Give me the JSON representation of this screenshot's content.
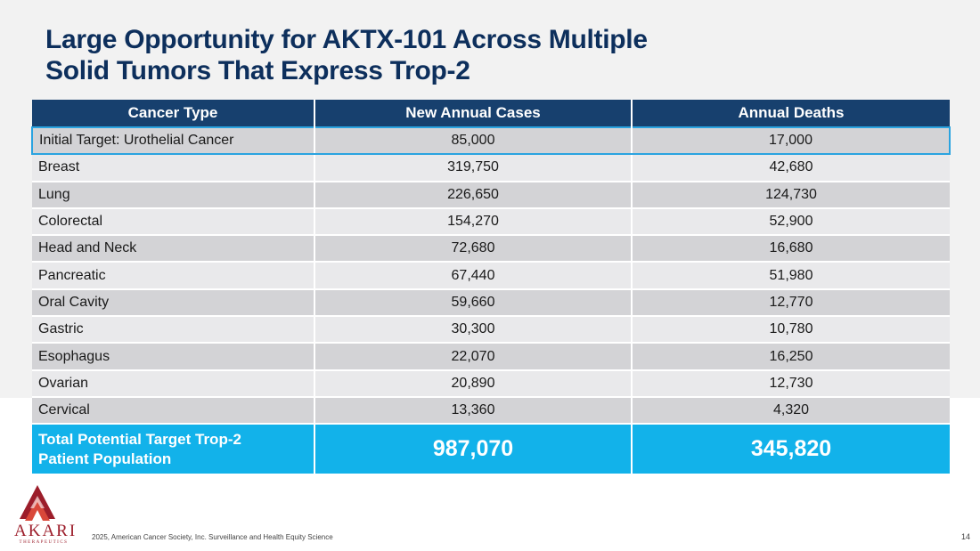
{
  "slide": {
    "title_line1": "Large Opportunity for AKTX-101 Across Multiple",
    "title_line2": "Solid Tumors That Express Trop-2",
    "page_number": "14",
    "footnote": "2025, American Cancer Society, Inc. Surveillance and Health Equity Science"
  },
  "table": {
    "headers": [
      "Cancer Type",
      "New Annual Cases",
      "Annual Deaths"
    ],
    "rows": [
      [
        "Initial Target: Urothelial Cancer",
        "85,000",
        "17,000"
      ],
      [
        "Breast",
        "319,750",
        "42,680"
      ],
      [
        "Lung",
        "226,650",
        "124,730"
      ],
      [
        "Colorectal",
        "154,270",
        "52,900"
      ],
      [
        "Head and Neck",
        "72,680",
        "16,680"
      ],
      [
        "Pancreatic",
        "67,440",
        "51,980"
      ],
      [
        "Oral Cavity",
        "59,660",
        "12,770"
      ],
      [
        "Gastric",
        "30,300",
        "10,780"
      ],
      [
        "Esophagus",
        "22,070",
        "16,250"
      ],
      [
        "Ovarian",
        "20,890",
        "12,730"
      ],
      [
        "Cervical",
        "13,360",
        "4,320"
      ]
    ],
    "total": {
      "label": "Total Potential Target Trop-2 Patient Population",
      "cases": "987,070",
      "deaths": "345,820"
    }
  },
  "logo": {
    "name": "AKARI",
    "subtitle": "THERAPEUTICS",
    "colors": {
      "primary": "#9c1d2a",
      "accent": "#d9483a"
    }
  },
  "colors": {
    "title": "#0d2f5c",
    "header_bg": "#17406e",
    "total_bg": "#12b2ea",
    "highlight_border": "#2aa3e0",
    "row_dark": "#d3d3d6",
    "row_light": "#e9e9eb"
  }
}
